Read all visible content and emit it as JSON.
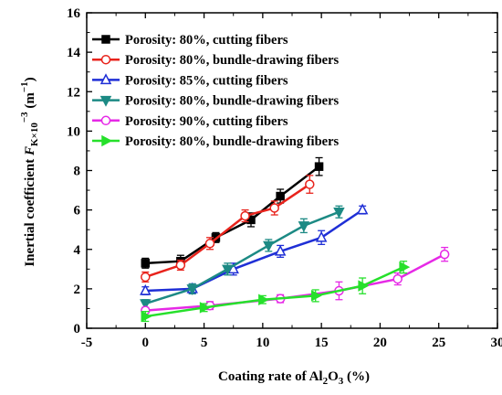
{
  "chart_data": {
    "type": "line",
    "xlabel": "Coating rate of Al₂O₃ (%)",
    "xlabel_parts": {
      "pre": "Coating rate of Al",
      "sub1": "2",
      "mid": "O",
      "sub2": "3",
      "post": " (%)"
    },
    "ylabel": "Inertial coefficient F_K×10⁻³ (m⁻¹)",
    "ylabel_parts": {
      "pre": "Inertial coefficient ",
      "var": "F",
      "sub": "K×10",
      "sup1": "−3",
      "post": " (m",
      "sup2": "−1",
      "end": ")"
    },
    "xlim": [
      -5,
      30
    ],
    "ylim": [
      0,
      16
    ],
    "xticks": [
      -5,
      0,
      5,
      10,
      15,
      20,
      25,
      30
    ],
    "yticks": [
      0,
      2,
      4,
      6,
      8,
      10,
      12,
      14,
      16
    ],
    "grid": false,
    "legend_position": "top-left",
    "series": [
      {
        "name": "Porosity: 80%, cutting fibers",
        "color": "#000000",
        "marker": "filled-square",
        "x": [
          0,
          3,
          6,
          9,
          11.5,
          14.8
        ],
        "y": [
          3.3,
          3.4,
          4.6,
          5.5,
          6.7,
          8.2
        ],
        "err": [
          0.25,
          0.3,
          0.25,
          0.35,
          0.35,
          0.45
        ]
      },
      {
        "name": "Porosity: 80%, bundle-drawing fibers",
        "color": "#e8231c",
        "marker": "open-circle",
        "x": [
          0,
          3,
          5.5,
          8.5,
          11,
          14
        ],
        "y": [
          2.6,
          3.2,
          4.3,
          5.7,
          6.1,
          7.3
        ],
        "err": [
          0.25,
          0.25,
          0.3,
          0.3,
          0.35,
          0.45
        ]
      },
      {
        "name": "Porosity: 85%, cutting fibers",
        "color": "#1f2fd6",
        "marker": "open-triangle-up",
        "x": [
          0,
          4,
          7.5,
          11.5,
          15,
          18.5
        ],
        "y": [
          1.9,
          2.0,
          3.0,
          3.9,
          4.6,
          6.0
        ],
        "err": [
          0.2,
          0.25,
          0.3,
          0.3,
          0.35,
          0.2
        ]
      },
      {
        "name": "Porosity: 80%, bundle-drawing fibers",
        "color": "#1c8a84",
        "marker": "filled-triangle-down",
        "x": [
          0,
          4,
          7,
          10.5,
          13.5,
          16.5
        ],
        "y": [
          1.25,
          2.0,
          3.0,
          4.2,
          5.2,
          5.9
        ],
        "err": [
          0.2,
          0.25,
          0.3,
          0.3,
          0.35,
          0.3
        ]
      },
      {
        "name": "Porosity: 90%, cutting fibers",
        "color": "#e629e6",
        "marker": "open-circle",
        "x": [
          0,
          5.5,
          11.5,
          16.5,
          21.5,
          25.5
        ],
        "y": [
          0.9,
          1.15,
          1.5,
          1.9,
          2.5,
          3.75
        ],
        "err": [
          0.15,
          0.2,
          0.2,
          0.45,
          0.3,
          0.35
        ]
      },
      {
        "name": "Porosity: 80%, bundle-drawing fibers",
        "color": "#26e02b",
        "marker": "filled-triangle-right",
        "x": [
          0,
          5,
          10,
          14.5,
          18.5,
          22
        ],
        "y": [
          0.6,
          1.05,
          1.45,
          1.65,
          2.15,
          3.1
        ],
        "err": [
          0.25,
          0.2,
          0.2,
          0.3,
          0.4,
          0.3
        ]
      }
    ]
  }
}
